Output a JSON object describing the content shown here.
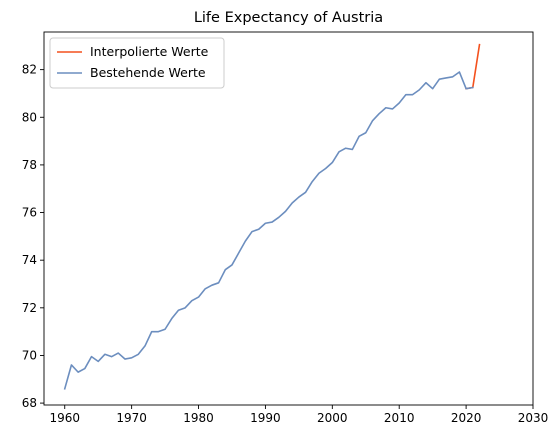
{
  "chart_data": {
    "type": "line",
    "title": "Life Expectancy of Austria",
    "xlabel": "",
    "ylabel": "",
    "xlim": [
      1956.9,
      2030
    ],
    "ylim": [
      67.92,
      83.58
    ],
    "xticks": [
      1960,
      1970,
      1980,
      1990,
      2000,
      2010,
      2020,
      2030
    ],
    "yticks": [
      68,
      70,
      72,
      74,
      76,
      78,
      80,
      82
    ],
    "grid": false,
    "legend_position": "top-left",
    "series": [
      {
        "name": "Interpolierte Werte",
        "color": "#f4511e",
        "x": [
          2020,
          2021,
          2022
        ],
        "y": [
          81.2,
          81.25,
          83.05
        ]
      },
      {
        "name": "Bestehende Werte",
        "color": "#6c8ebf",
        "x": [
          1960,
          1961,
          1962,
          1963,
          1964,
          1965,
          1966,
          1967,
          1968,
          1969,
          1970,
          1971,
          1972,
          1973,
          1974,
          1975,
          1976,
          1977,
          1978,
          1979,
          1980,
          1981,
          1982,
          1983,
          1984,
          1985,
          1986,
          1987,
          1988,
          1989,
          1990,
          1991,
          1992,
          1993,
          1994,
          1995,
          1996,
          1997,
          1998,
          1999,
          2000,
          2001,
          2002,
          2003,
          2004,
          2005,
          2006,
          2007,
          2008,
          2009,
          2010,
          2011,
          2012,
          2013,
          2014,
          2015,
          2016,
          2017,
          2018,
          2019,
          2020,
          2021
        ],
        "y": [
          68.6,
          69.6,
          69.3,
          69.45,
          69.95,
          69.75,
          70.05,
          69.95,
          70.1,
          69.85,
          69.9,
          70.05,
          70.4,
          71.0,
          71.0,
          71.1,
          71.55,
          71.9,
          72.0,
          72.3,
          72.45,
          72.8,
          72.95,
          73.05,
          73.6,
          73.8,
          74.3,
          74.8,
          75.2,
          75.3,
          75.55,
          75.6,
          75.8,
          76.05,
          76.4,
          76.65,
          76.85,
          77.3,
          77.65,
          77.85,
          78.1,
          78.55,
          78.7,
          78.65,
          79.2,
          79.35,
          79.85,
          80.15,
          80.4,
          80.35,
          80.6,
          80.95,
          80.95,
          81.15,
          81.45,
          81.2,
          81.6,
          81.65,
          81.7,
          81.9,
          81.2,
          81.25
        ]
      }
    ]
  }
}
